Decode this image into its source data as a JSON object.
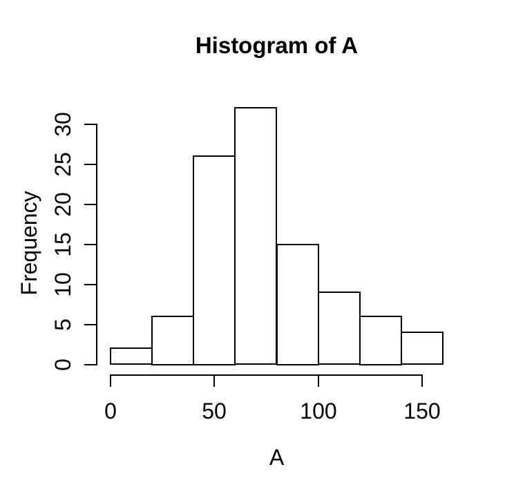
{
  "chart_data": {
    "type": "bar",
    "subtype": "histogram",
    "title": "Histogram of A",
    "xlabel": "A",
    "ylabel": "Frequency",
    "bin_edges": [
      0,
      20,
      40,
      60,
      80,
      100,
      120,
      140,
      160
    ],
    "values": [
      2,
      6,
      26,
      32,
      15,
      9,
      6,
      4
    ],
    "categories": [
      "0-20",
      "20-40",
      "40-60",
      "60-80",
      "80-100",
      "100-120",
      "120-140",
      "140-160"
    ],
    "x_ticks": [
      0,
      50,
      100,
      150
    ],
    "y_ticks": [
      0,
      5,
      10,
      15,
      20,
      25,
      30
    ],
    "xlim": [
      0,
      160
    ],
    "ylim": [
      0,
      32
    ],
    "grid": false,
    "legend": null,
    "bar_fill": "#ffffff",
    "line_color": "#000000",
    "text_color": "#000000",
    "background": "#ffffff"
  }
}
